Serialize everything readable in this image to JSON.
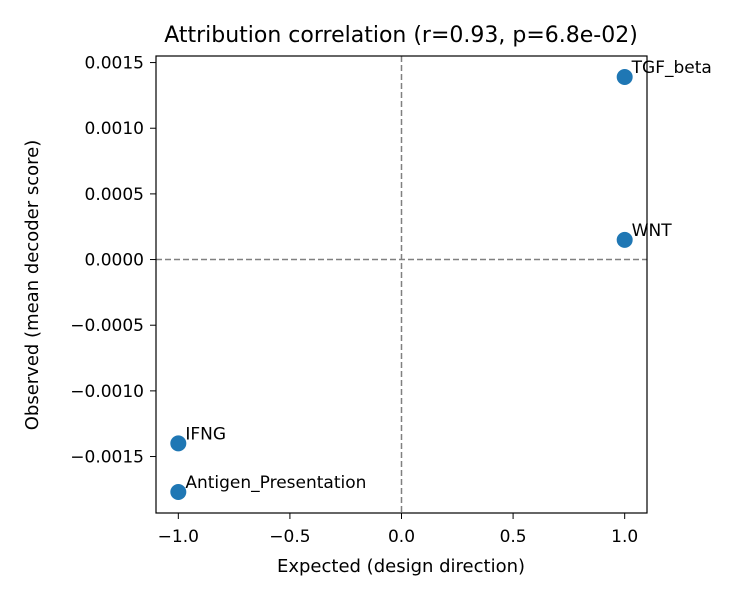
{
  "chart_data": {
    "type": "scatter",
    "title": "Attribution correlation (r=0.93, p=6.8e-02)",
    "xlabel": "Expected (design direction)",
    "ylabel": "Observed (mean decoder score)",
    "xlim": [
      -1.1,
      1.1
    ],
    "ylim": [
      -0.00193,
      0.00155
    ],
    "x_ticks": [
      -1.0,
      -0.5,
      0.0,
      0.5,
      1.0
    ],
    "x_tick_labels": [
      "−1.0",
      "−0.5",
      "0.0",
      "0.5",
      "1.0"
    ],
    "y_ticks": [
      0.0015,
      0.001,
      0.0005,
      0.0,
      -0.0005,
      -0.001,
      -0.0015
    ],
    "y_tick_labels": [
      "0.0015",
      "0.0010",
      "0.0005",
      "0.0000",
      "−0.0005",
      "−0.0010",
      "−0.0015"
    ],
    "reference_lines": {
      "x": 0,
      "y": 0,
      "style": "dashed",
      "color": "#808080"
    },
    "marker_color": "#1f77b4",
    "grid": false,
    "points": [
      {
        "label": "TGF_beta",
        "x": 1.0,
        "y": 0.00139
      },
      {
        "label": "WNT",
        "x": 1.0,
        "y": 0.00015
      },
      {
        "label": "IFNG",
        "x": -1.0,
        "y": -0.0014
      },
      {
        "label": "Antigen_Presentation",
        "x": -1.0,
        "y": -0.00177
      }
    ]
  }
}
